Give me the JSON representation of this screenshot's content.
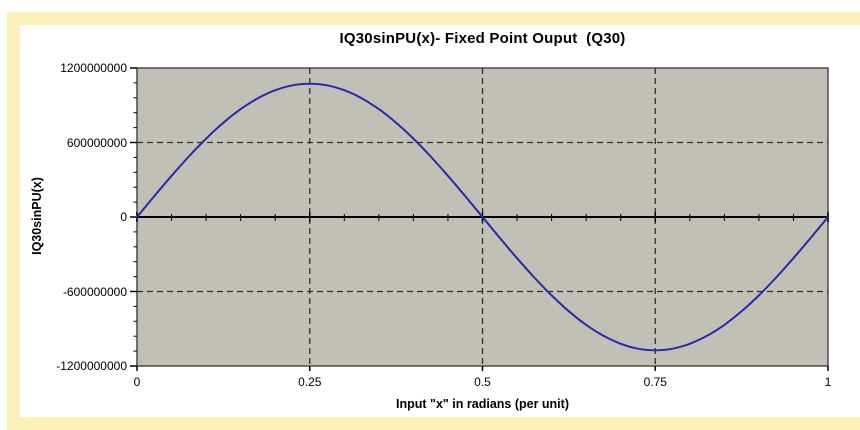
{
  "window": {
    "background_color": "#ffffff",
    "frame_color": "#fbf1bb"
  },
  "chart_data": {
    "type": "line",
    "title": "IQ30sinPU(x)- Fixed Point Ouput  (Q30)",
    "xlabel": "Input \"x\" in radians (per unit)",
    "ylabel": "IQ30sinPU(x)",
    "xlim": [
      0,
      1
    ],
    "ylim": [
      -1200000000,
      1200000000
    ],
    "x_ticks": {
      "values": [
        0,
        0.25,
        0.5,
        0.75,
        1
      ],
      "labels": [
        "0",
        "0.25",
        "0.5",
        "0.75",
        "1"
      ]
    },
    "y_ticks": {
      "values": [
        1200000000,
        600000000,
        0,
        -600000000,
        -1200000000
      ],
      "labels": [
        "1200000000",
        "600000000",
        "0",
        "-600000000",
        "-1200000000"
      ]
    },
    "x_minor_step": 0.05,
    "y_minor_step": 120000000,
    "grid": "dashed",
    "legend_position": "none",
    "style": {
      "plot_background": "#c2c0b6",
      "plot_border": "#4a4a4a",
      "grid_color": "#2e2e2e",
      "axis_color": "#000000",
      "line_color": "#2a2aa4"
    },
    "series": [
      {
        "name": "IQ30sinPU(x)",
        "color": "#2a2aa4",
        "x": [
          0,
          0.025,
          0.05,
          0.075,
          0.1,
          0.125,
          0.15,
          0.175,
          0.2,
          0.225,
          0.25,
          0.275,
          0.3,
          0.325,
          0.35,
          0.375,
          0.4,
          0.425,
          0.45,
          0.475,
          0.5,
          0.525,
          0.55,
          0.575,
          0.6,
          0.625,
          0.65,
          0.675,
          0.7,
          0.725,
          0.75,
          0.775,
          0.8,
          0.825,
          0.85,
          0.875,
          0.9,
          0.925,
          0.95,
          0.975,
          1
        ],
        "y": [
          0,
          167970233,
          331804471,
          487468588,
          631129613,
          759250125,
          868675379,
          956610992,
          1021189157,
          1060522515,
          1073741824,
          1060522515,
          1021189157,
          956610992,
          868675379,
          759250125,
          631129613,
          487468588,
          331804471,
          167970233,
          0,
          -167970233,
          -331804471,
          -487468588,
          -631129613,
          -759250125,
          -868675379,
          -956610992,
          -1021189157,
          -1060522515,
          -1073741824,
          -1060522515,
          -1021189157,
          -956610992,
          -868675379,
          -759250125,
          -631129613,
          -487468588,
          -331804471,
          -167970233,
          0
        ]
      }
    ]
  }
}
